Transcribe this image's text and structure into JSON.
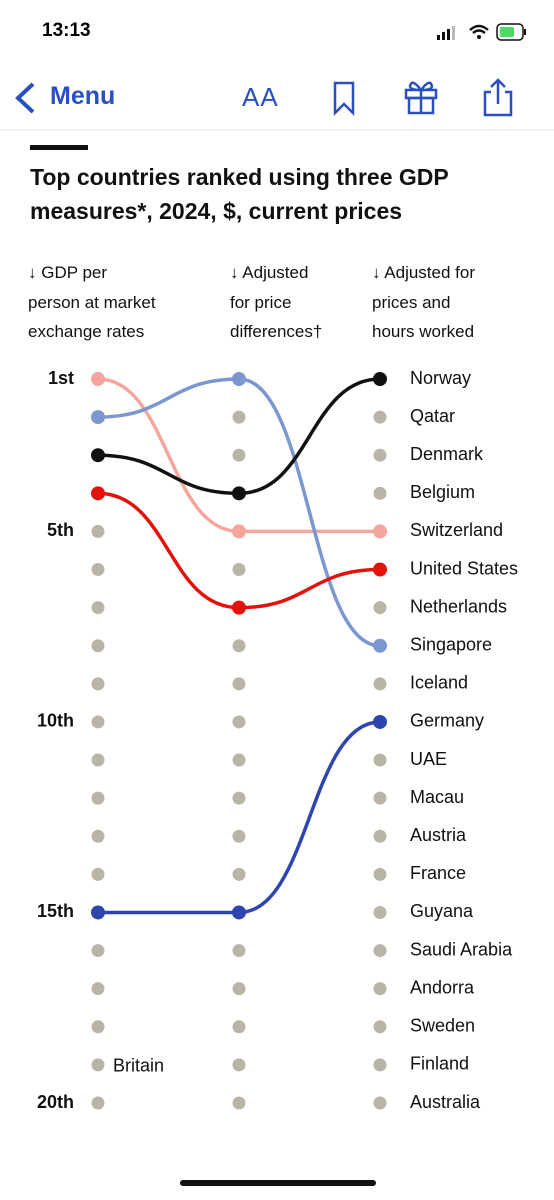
{
  "status_bar": {
    "time": "13:13"
  },
  "nav": {
    "back": "Menu",
    "text_size": "AA"
  },
  "chart_data": {
    "type": "bump",
    "title": "Top countries ranked using three GDP\nmeasures*, 2024, $, current prices",
    "categories": [
      "↓ GDP per\nperson at market\nexchange rates",
      "↓ Adjusted\nfor price\ndifferences†",
      "↓ Adjusted for\nprices and\nhours worked"
    ],
    "ylim": [
      1,
      20
    ],
    "yticks": [
      {
        "value": 1,
        "label": "1st"
      },
      {
        "value": 5,
        "label": "5th"
      },
      {
        "value": 10,
        "label": "10th"
      },
      {
        "value": 15,
        "label": "15th"
      },
      {
        "value": 20,
        "label": "20th"
      }
    ],
    "row_labels": [
      "Norway",
      "Qatar",
      "Denmark",
      "Belgium",
      "Switzerland",
      "United States",
      "Netherlands",
      "Singapore",
      "Iceland",
      "Germany",
      "UAE",
      "Macau",
      "Austria",
      "France",
      "Guyana",
      "Saudi Arabia",
      "Andorra",
      "Sweden",
      "Finland",
      "Australia"
    ],
    "dot_color": "#b8b5a6",
    "series": [
      {
        "color": "#f4a69c",
        "values": [
          1,
          5,
          5
        ]
      },
      {
        "color": "#7b97cf",
        "values": [
          2,
          1,
          8
        ]
      },
      {
        "color": "#111111",
        "values": [
          3,
          4,
          1
        ]
      },
      {
        "color": "#e3120b",
        "values": [
          4,
          7,
          6
        ]
      },
      {
        "color": "#2e45b0",
        "values": [
          15,
          15,
          10
        ]
      }
    ],
    "annotations": [
      {
        "text": "Britain",
        "column": 0,
        "rank": 19
      }
    ]
  }
}
